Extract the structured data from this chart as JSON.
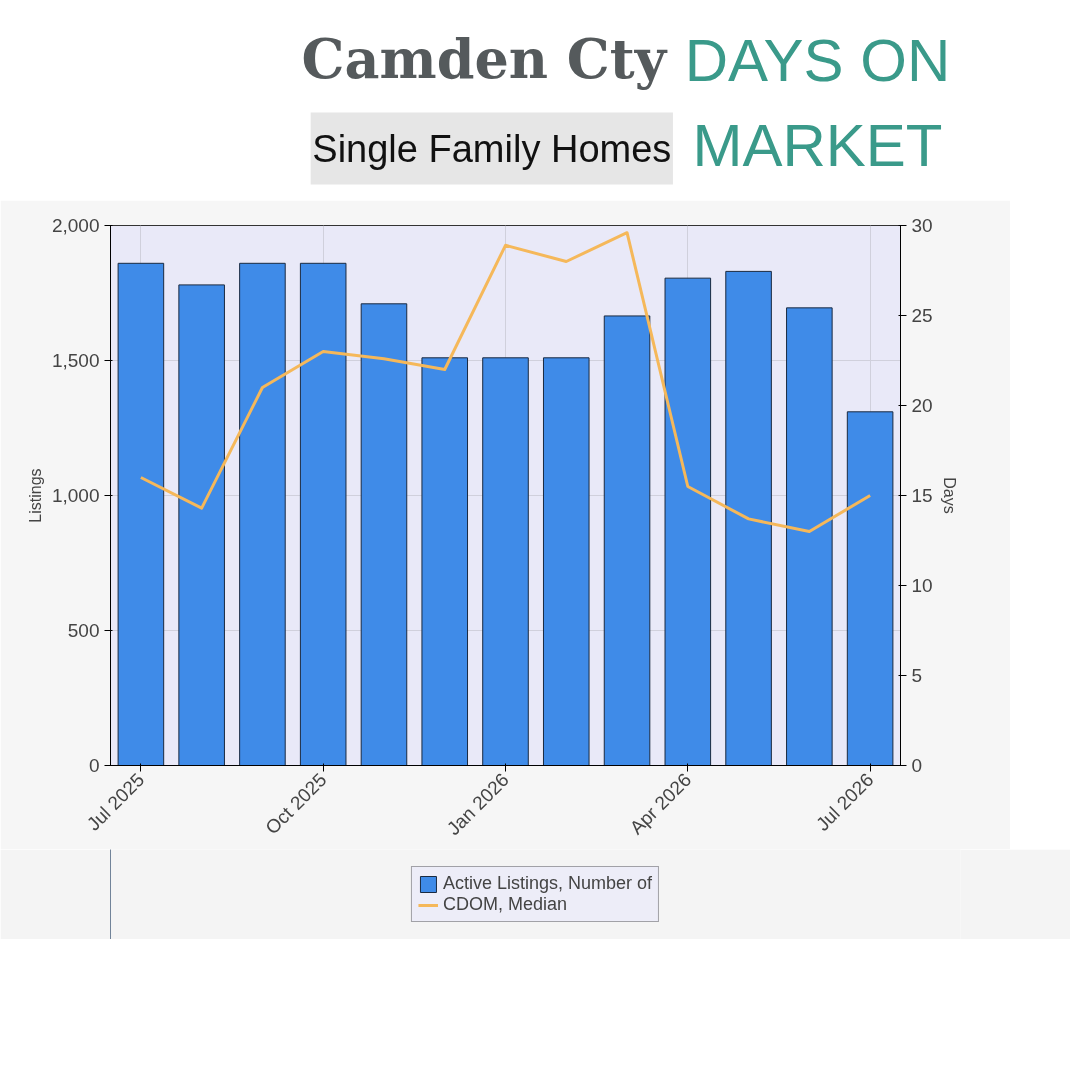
{
  "chart_data": {
    "type": "bar",
    "title": "Camden Cty",
    "subtitle": "Single Family Homes",
    "annotations": [
      "DAYS ON MARKET"
    ],
    "categories": [
      "Jul 2025",
      null,
      null,
      "Oct 2025",
      null,
      null,
      "Jan 2026",
      null,
      null,
      "Apr 2026",
      null,
      null,
      "Jul 2026"
    ],
    "series": [
      {
        "name": "Active Listings, Number of",
        "color": "#3f8be8",
        "values": [
          1860,
          1780,
          1860,
          1860,
          1710,
          1510,
          1510,
          1510,
          1665,
          1805,
          1830,
          1695,
          1310
        ]
      },
      {
        "name": "CDOM, Median",
        "type": "line",
        "axis": "y2",
        "color": "#f5b85a",
        "values": [
          16.0,
          14.3,
          21.0,
          23.0,
          22.6,
          22.0,
          28.9,
          28.0,
          29.6,
          15.5,
          13.7,
          13.0,
          15.0
        ]
      }
    ],
    "ylabel": "Listings",
    "y2label": "Days",
    "ylim": [
      0,
      2000
    ],
    "yticks": [
      0,
      {
        "value": 500,
        "label": "500"
      },
      {
        "value": 1000,
        "label": "1,000"
      },
      {
        "value": 1500,
        "label": "1,500"
      },
      {
        "value": 2000,
        "label": "2,000"
      }
    ],
    "y2lim": [
      0,
      30
    ],
    "y2ticks": [
      0,
      5,
      10,
      15,
      20,
      25,
      30
    ],
    "grid": true,
    "legend": "bottom",
    "marker": "none",
    "line_style": "solid"
  }
}
